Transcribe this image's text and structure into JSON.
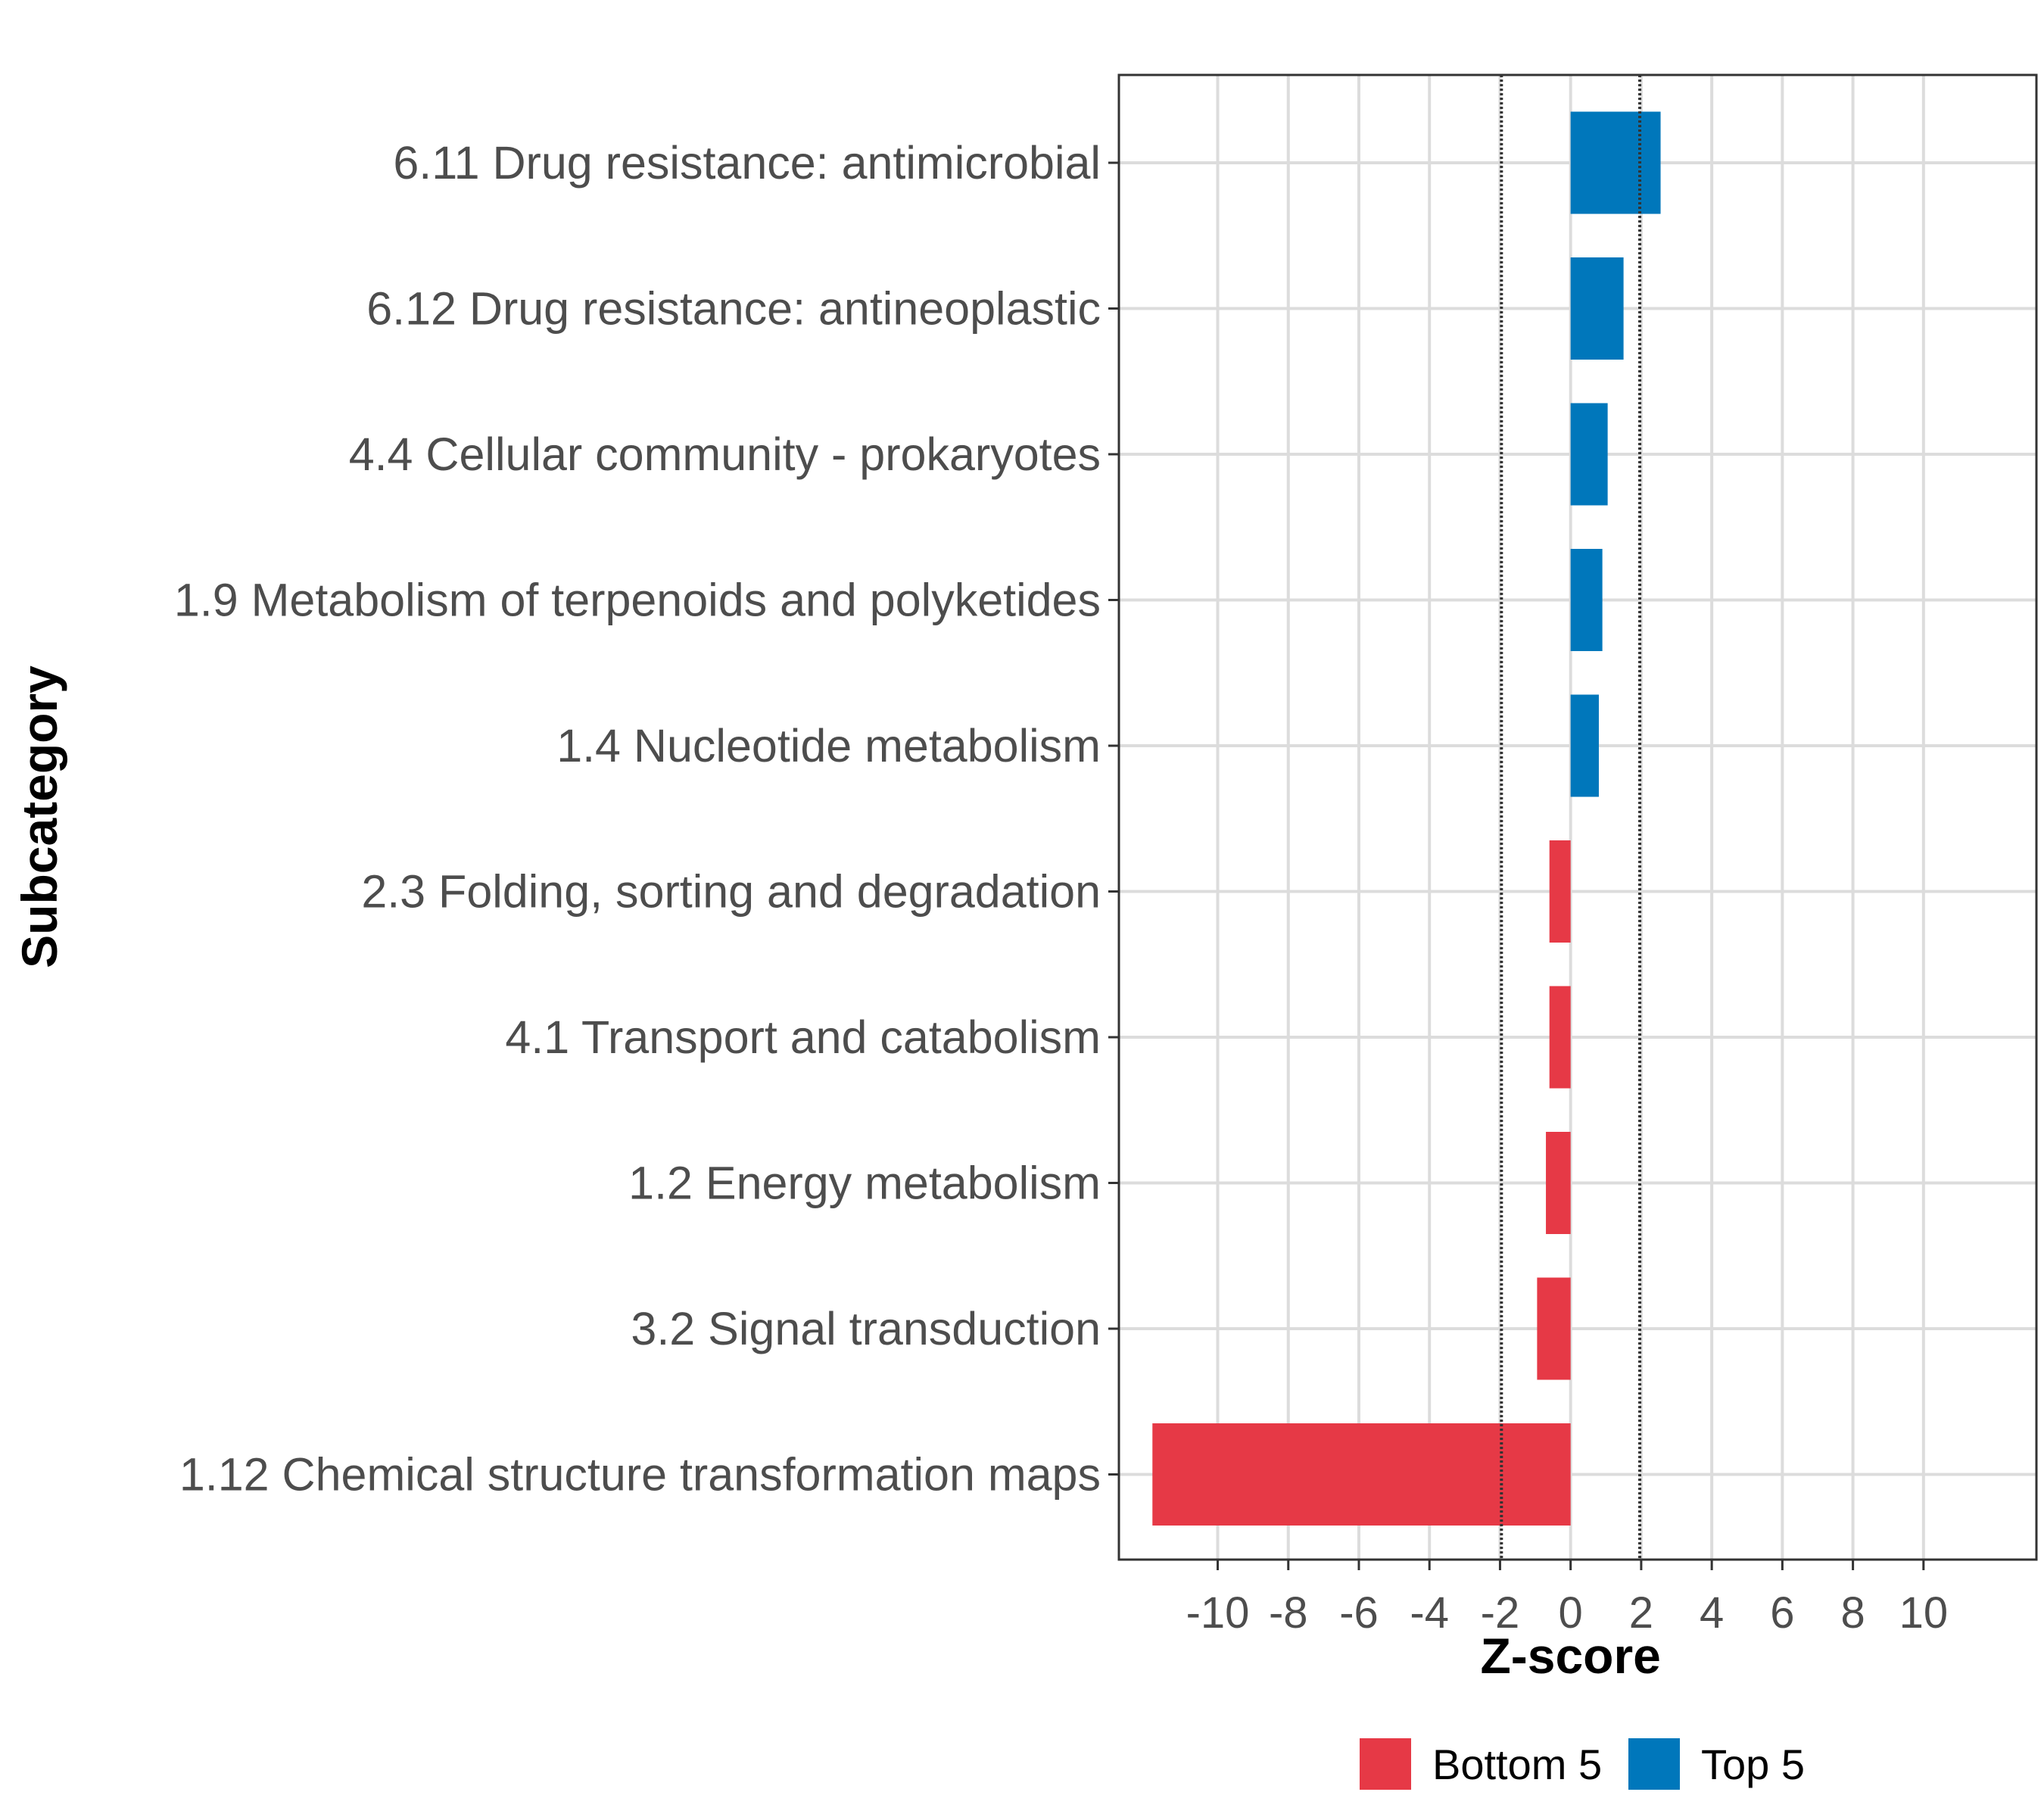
{
  "chart_data": {
    "type": "bar",
    "orientation": "horizontal",
    "xlabel": "Z-score",
    "ylabel": "Subcategory",
    "xlim": [
      -12.8,
      13.2
    ],
    "x_ticks": [
      -10,
      -8,
      -6,
      -4,
      -2,
      0,
      2,
      4,
      6,
      8,
      10
    ],
    "x_tick_labels": [
      "-10",
      "-8",
      "-6",
      "-4",
      "-2",
      "0",
      "2",
      "4",
      "6",
      "8",
      "10"
    ],
    "reference_lines": [
      -1.96,
      1.96
    ],
    "categories": [
      "6.11 Drug resistance: antimicrobial",
      "6.12 Drug resistance: antineoplastic",
      "4.4 Cellular community - prokaryotes",
      "1.9 Metabolism of terpenoids and polyketides",
      "1.4 Nucleotide metabolism",
      "2.3 Folding, sorting and degradation",
      "4.1 Transport and catabolism",
      "1.2 Energy metabolism",
      "3.2 Signal transduction",
      "1.12 Chemical structure transformation maps"
    ],
    "values": [
      2.55,
      1.5,
      1.05,
      0.9,
      0.8,
      -0.6,
      -0.6,
      -0.7,
      -0.95,
      -11.85
    ],
    "groups": [
      "Top 5",
      "Top 5",
      "Top 5",
      "Top 5",
      "Top 5",
      "Bottom 5",
      "Bottom 5",
      "Bottom 5",
      "Bottom 5",
      "Bottom 5"
    ],
    "legend": [
      {
        "label": "Bottom 5",
        "color": "#E63946"
      },
      {
        "label": "Top 5",
        "color": "#0077BB"
      }
    ],
    "legend_position": "bottom",
    "grid": true
  }
}
